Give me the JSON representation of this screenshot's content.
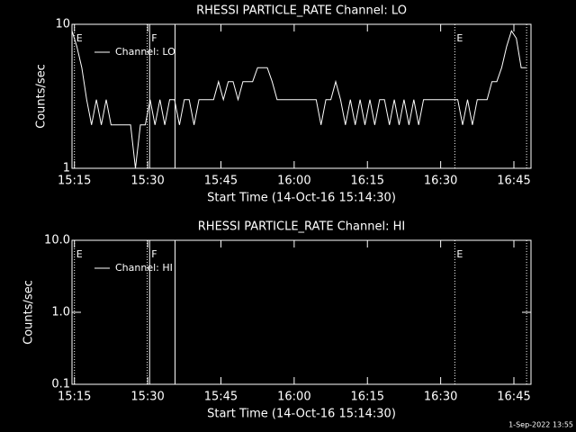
{
  "chart_data": [
    {
      "type": "line",
      "title": "RHESSI PARTICLE_RATE Channel: LO",
      "x_label": "Start Time (14-Oct-16 15:14:30)",
      "y_label": "Counts/sec",
      "log_y": true,
      "color": "#ffffff",
      "xlim": [
        0,
        94
      ],
      "ylim": [
        1,
        10
      ],
      "xticks": [
        {
          "value": 0.5,
          "label": "15:15"
        },
        {
          "value": 15.5,
          "label": "15:30"
        },
        {
          "value": 30.5,
          "label": "15:45"
        },
        {
          "value": 45.5,
          "label": "16:00"
        },
        {
          "value": 60.5,
          "label": "16:15"
        },
        {
          "value": 75.5,
          "label": "16:30"
        },
        {
          "value": 90.5,
          "label": "16:45"
        }
      ],
      "yticks": [
        1,
        10
      ],
      "markers": [
        {
          "x": 0.5,
          "style": "dotted",
          "label": "E"
        },
        {
          "x": 15.4,
          "style": "dotted"
        },
        {
          "x": 15.9,
          "style": "solid",
          "label": "F"
        },
        {
          "x": 21.1,
          "style": "solid"
        },
        {
          "x": 78.4,
          "style": "dotted",
          "label": "E"
        },
        {
          "x": 93.1,
          "style": "dotted"
        }
      ],
      "x": [
        0,
        1,
        2,
        3,
        4,
        5,
        6,
        7,
        8,
        9,
        10,
        11,
        12,
        13,
        14,
        15,
        16,
        17,
        18,
        19,
        20,
        21,
        22,
        23,
        24,
        25,
        26,
        27,
        28,
        29,
        30,
        31,
        32,
        33,
        34,
        35,
        36,
        37,
        38,
        39,
        40,
        41,
        42,
        43,
        44,
        45,
        46,
        47,
        48,
        49,
        50,
        51,
        52,
        53,
        54,
        55,
        56,
        57,
        58,
        59,
        60,
        61,
        62,
        63,
        64,
        65,
        66,
        67,
        68,
        69,
        70,
        71,
        72,
        73,
        74,
        75,
        76,
        77,
        78,
        79,
        80,
        81,
        82,
        83,
        84,
        85,
        86,
        87,
        88,
        89,
        90,
        91,
        92,
        93
      ],
      "series": [
        {
          "name": "Channel: LO",
          "color": "#ffffff",
          "values": [
            9,
            7,
            5,
            3,
            2,
            3,
            2,
            3,
            2,
            2,
            2,
            2,
            2,
            1,
            2,
            2,
            3,
            2,
            3,
            2,
            3,
            3,
            2,
            3,
            3,
            2,
            3,
            3,
            3,
            3,
            4,
            3,
            4,
            4,
            3,
            4,
            4,
            4,
            5,
            5,
            5,
            4,
            3,
            3,
            3,
            3,
            3,
            3,
            3,
            3,
            3,
            2,
            3,
            3,
            4,
            3,
            2,
            3,
            2,
            3,
            2,
            3,
            2,
            3,
            3,
            2,
            3,
            2,
            3,
            2,
            3,
            2,
            3,
            3,
            3,
            3,
            3,
            3,
            3,
            3,
            2,
            3,
            2,
            3,
            3,
            3,
            4,
            4,
            5,
            7,
            9,
            8,
            5,
            5
          ]
        }
      ]
    },
    {
      "type": "line",
      "title": "RHESSI PARTICLE_RATE Channel: HI",
      "x_label": "Start Time (14-Oct-16 15:14:30)",
      "y_label": "Counts/sec",
      "log_y": true,
      "color": "#ffffff",
      "xlim": [
        0,
        94
      ],
      "ylim": [
        0.1,
        10
      ],
      "xticks": [
        {
          "value": 0.5,
          "label": "15:15"
        },
        {
          "value": 15.5,
          "label": "15:30"
        },
        {
          "value": 30.5,
          "label": "15:45"
        },
        {
          "value": 45.5,
          "label": "16:00"
        },
        {
          "value": 60.5,
          "label": "16:15"
        },
        {
          "value": 75.5,
          "label": "16:30"
        },
        {
          "value": 90.5,
          "label": "16:45"
        }
      ],
      "yticks": [
        0.1,
        {
          "value": 1,
          "label": "1.0"
        },
        {
          "value": 10,
          "label": "10.0"
        }
      ],
      "markers": [
        {
          "x": 0.5,
          "style": "dotted",
          "label": "E"
        },
        {
          "x": 15.4,
          "style": "dotted"
        },
        {
          "x": 15.9,
          "style": "solid",
          "label": "F"
        },
        {
          "x": 21.1,
          "style": "solid"
        },
        {
          "x": 78.4,
          "style": "dotted",
          "label": "E"
        },
        {
          "x": 93.1,
          "style": "dotted"
        }
      ],
      "x": [],
      "series": [
        {
          "name": "Channel: HI",
          "color": "#ffffff",
          "values": []
        }
      ]
    }
  ],
  "footer": "1-Sep-2022 13:55"
}
